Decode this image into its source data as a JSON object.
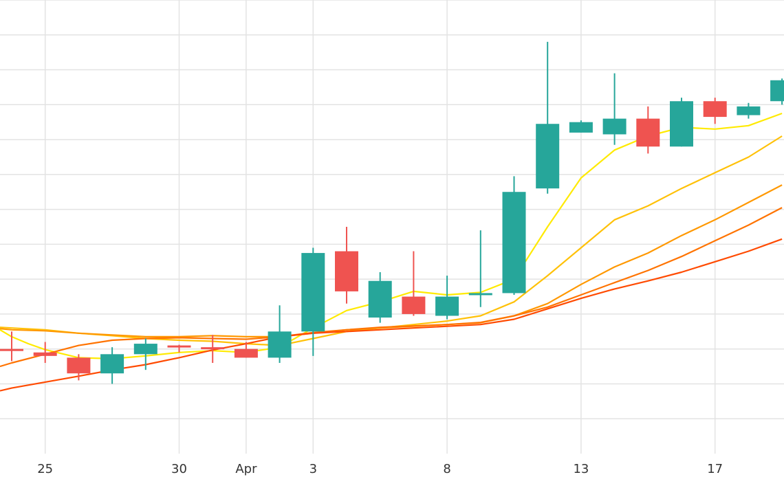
{
  "chart_data": {
    "type": "candlestick",
    "title": "",
    "xlabel": "",
    "ylabel": "",
    "grid": true,
    "legend": "none",
    "x_tick_labels": [
      {
        "day": 2,
        "label": "25"
      },
      {
        "day": 6,
        "label": "30"
      },
      {
        "day": 8,
        "label": "Apr"
      },
      {
        "day": 10,
        "label": "3"
      },
      {
        "day": 14,
        "label": "8"
      },
      {
        "day": 18,
        "label": "13"
      },
      {
        "day": 22,
        "label": "17"
      }
    ],
    "x_range": [
      0.65,
      24.0
    ],
    "y_range": [
      0,
      13
    ],
    "y_gridlines": [
      1,
      2,
      3,
      4,
      5,
      6,
      7,
      8,
      9,
      10,
      11,
      12,
      13
    ],
    "candles": [
      {
        "day": 1,
        "open": 3.0,
        "high": 3.5,
        "low": 2.65,
        "close": 2.95
      },
      {
        "day": 2,
        "open": 2.9,
        "high": 3.2,
        "low": 2.6,
        "close": 2.8
      },
      {
        "day": 3,
        "open": 2.75,
        "high": 2.85,
        "low": 2.1,
        "close": 2.3
      },
      {
        "day": 4,
        "open": 2.3,
        "high": 3.05,
        "low": 2.0,
        "close": 2.85
      },
      {
        "day": 5,
        "open": 2.85,
        "high": 3.3,
        "low": 2.4,
        "close": 3.15
      },
      {
        "day": 6,
        "open": 3.1,
        "high": 3.12,
        "low": 2.9,
        "close": 3.07
      },
      {
        "day": 7,
        "open": 3.05,
        "high": 3.4,
        "low": 2.6,
        "close": 3.0
      },
      {
        "day": 8,
        "open": 3.0,
        "high": 3.2,
        "low": 2.75,
        "close": 2.75
      },
      {
        "day": 9,
        "open": 2.75,
        "high": 4.25,
        "low": 2.6,
        "close": 3.5
      },
      {
        "day": 10,
        "open": 3.5,
        "high": 5.9,
        "low": 2.8,
        "close": 5.75
      },
      {
        "day": 11,
        "open": 5.8,
        "high": 6.5,
        "low": 4.3,
        "close": 4.65
      },
      {
        "day": 12,
        "open": 3.9,
        "high": 5.2,
        "low": 3.75,
        "close": 4.95
      },
      {
        "day": 13,
        "open": 4.5,
        "high": 5.8,
        "low": 3.95,
        "close": 4.0
      },
      {
        "day": 14,
        "open": 3.95,
        "high": 5.1,
        "low": 3.85,
        "close": 4.5
      },
      {
        "day": 15,
        "open": 4.55,
        "high": 6.4,
        "low": 4.2,
        "close": 4.6
      },
      {
        "day": 16,
        "open": 4.6,
        "high": 7.95,
        "low": 4.55,
        "close": 7.5
      },
      {
        "day": 17,
        "open": 7.6,
        "high": 11.8,
        "low": 7.45,
        "close": 9.45
      },
      {
        "day": 18,
        "open": 9.2,
        "high": 9.55,
        "low": 9.2,
        "close": 9.5
      },
      {
        "day": 19,
        "open": 9.15,
        "high": 10.9,
        "low": 8.85,
        "close": 9.6
      },
      {
        "day": 20,
        "open": 9.6,
        "high": 9.95,
        "low": 8.6,
        "close": 8.8
      },
      {
        "day": 21,
        "open": 8.8,
        "high": 10.2,
        "low": 8.8,
        "close": 10.1
      },
      {
        "day": 22,
        "open": 10.1,
        "high": 10.2,
        "low": 9.45,
        "close": 9.65
      },
      {
        "day": 23,
        "open": 9.7,
        "high": 10.05,
        "low": 9.6,
        "close": 9.95
      },
      {
        "day": 24,
        "open": 10.1,
        "high": 10.75,
        "low": 10.0,
        "close": 10.7
      }
    ],
    "moving_averages": [
      {
        "color": "#ffea00",
        "points": [
          [
            0.65,
            3.55
          ],
          [
            1,
            3.35
          ],
          [
            1.5,
            3.15
          ],
          [
            2,
            2.98
          ],
          [
            3,
            2.75
          ],
          [
            4,
            2.72
          ],
          [
            5,
            2.8
          ],
          [
            6,
            2.9
          ],
          [
            7,
            2.95
          ],
          [
            8,
            2.9
          ],
          [
            9,
            3.05
          ],
          [
            10,
            3.6
          ],
          [
            11,
            4.1
          ],
          [
            12,
            4.35
          ],
          [
            13,
            4.65
          ],
          [
            14,
            4.55
          ],
          [
            15,
            4.62
          ],
          [
            16,
            5.0
          ],
          [
            17,
            6.5
          ],
          [
            18,
            7.9
          ],
          [
            19,
            8.7
          ],
          [
            20,
            9.1
          ],
          [
            21,
            9.35
          ],
          [
            22,
            9.3
          ],
          [
            23,
            9.4
          ],
          [
            24,
            9.75
          ]
        ]
      },
      {
        "color": "#ffc107",
        "points": [
          [
            0.65,
            3.62
          ],
          [
            1,
            3.6
          ],
          [
            2,
            3.55
          ],
          [
            3,
            3.45
          ],
          [
            4,
            3.38
          ],
          [
            5,
            3.3
          ],
          [
            6,
            3.25
          ],
          [
            7,
            3.22
          ],
          [
            8,
            3.15
          ],
          [
            9,
            3.1
          ],
          [
            10,
            3.3
          ],
          [
            11,
            3.5
          ],
          [
            12,
            3.6
          ],
          [
            13,
            3.7
          ],
          [
            14,
            3.8
          ],
          [
            15,
            3.95
          ],
          [
            16,
            4.35
          ],
          [
            17,
            5.1
          ],
          [
            18,
            5.9
          ],
          [
            19,
            6.7
          ],
          [
            20,
            7.1
          ],
          [
            21,
            7.6
          ],
          [
            22,
            8.05
          ],
          [
            23,
            8.5
          ],
          [
            24,
            9.1
          ]
        ]
      },
      {
        "color": "#ff9800",
        "points": [
          [
            0.65,
            3.58
          ],
          [
            1,
            3.55
          ],
          [
            2,
            3.52
          ],
          [
            3,
            3.45
          ],
          [
            4,
            3.4
          ],
          [
            5,
            3.35
          ],
          [
            6,
            3.35
          ],
          [
            7,
            3.38
          ],
          [
            8,
            3.35
          ],
          [
            9,
            3.35
          ],
          [
            10,
            3.45
          ],
          [
            11,
            3.55
          ],
          [
            12,
            3.6
          ],
          [
            13,
            3.65
          ],
          [
            14,
            3.7
          ],
          [
            15,
            3.75
          ],
          [
            16,
            3.95
          ],
          [
            17,
            4.3
          ],
          [
            18,
            4.85
          ],
          [
            19,
            5.35
          ],
          [
            20,
            5.75
          ],
          [
            21,
            6.25
          ],
          [
            22,
            6.7
          ],
          [
            23,
            7.2
          ],
          [
            24,
            7.7
          ]
        ]
      },
      {
        "color": "#ff7300",
        "points": [
          [
            0.65,
            2.5
          ],
          [
            1,
            2.6
          ],
          [
            2,
            2.85
          ],
          [
            3,
            3.1
          ],
          [
            4,
            3.25
          ],
          [
            5,
            3.3
          ],
          [
            6,
            3.32
          ],
          [
            7,
            3.3
          ],
          [
            8,
            3.28
          ],
          [
            9,
            3.35
          ],
          [
            10,
            3.47
          ],
          [
            11,
            3.55
          ],
          [
            12,
            3.62
          ],
          [
            13,
            3.66
          ],
          [
            14,
            3.7
          ],
          [
            15,
            3.76
          ],
          [
            16,
            3.95
          ],
          [
            17,
            4.2
          ],
          [
            18,
            4.55
          ],
          [
            19,
            4.9
          ],
          [
            20,
            5.25
          ],
          [
            21,
            5.65
          ],
          [
            22,
            6.1
          ],
          [
            23,
            6.55
          ],
          [
            24,
            7.05
          ]
        ]
      },
      {
        "color": "#ff4a00",
        "points": [
          [
            0.65,
            1.8
          ],
          [
            1,
            1.88
          ],
          [
            2,
            2.05
          ],
          [
            3,
            2.22
          ],
          [
            4,
            2.4
          ],
          [
            5,
            2.55
          ],
          [
            6,
            2.75
          ],
          [
            7,
            2.97
          ],
          [
            8,
            3.15
          ],
          [
            9,
            3.35
          ],
          [
            10,
            3.45
          ],
          [
            11,
            3.5
          ],
          [
            12,
            3.55
          ],
          [
            13,
            3.6
          ],
          [
            14,
            3.65
          ],
          [
            15,
            3.7
          ],
          [
            16,
            3.85
          ],
          [
            17,
            4.15
          ],
          [
            18,
            4.45
          ],
          [
            19,
            4.72
          ],
          [
            20,
            4.95
          ],
          [
            21,
            5.2
          ],
          [
            22,
            5.5
          ],
          [
            23,
            5.8
          ],
          [
            24,
            6.15
          ]
        ]
      }
    ],
    "up_color": "#26a69a",
    "down_color": "#ef5350",
    "grid_color": "#e3e3e3"
  }
}
